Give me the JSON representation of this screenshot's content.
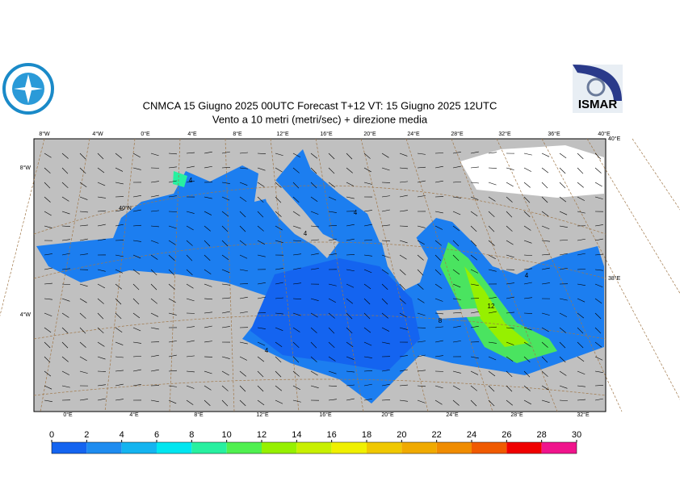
{
  "title": {
    "line1": "CNMCA 15   Giugno  2025 00UTC Forecast T+12 VT: 15   Giugno  2025 12UTC",
    "line2": "Vento a 10 metri (metri/sec) + direzione media"
  },
  "logo": {
    "right": "ISMAR"
  },
  "map": {
    "top_labels": [
      "8°W",
      "4°W",
      "0°E",
      "4°E",
      "8°E",
      "12°E",
      "16°E",
      "20°E",
      "24°E",
      "28°E",
      "32°E",
      "36°E",
      "40°E"
    ],
    "bottom_labels": [
      "0°E",
      "4°E",
      "8°E",
      "12°E",
      "16°E",
      "20°E",
      "24°E",
      "28°E",
      "32°E"
    ],
    "left_labels": [
      "8°W",
      "4°W"
    ],
    "right_labels": [
      "40°E",
      "38°E"
    ],
    "inner_labels": [
      "40°N"
    ],
    "contour_labels": [
      "4",
      "4",
      "4",
      "4",
      "12",
      "8",
      "4"
    ]
  },
  "colorbar": {
    "ticks": [
      0,
      2,
      4,
      6,
      8,
      10,
      12,
      14,
      16,
      18,
      20,
      22,
      24,
      26,
      28,
      30
    ],
    "colors": [
      "#1464f0",
      "#1e8cf0",
      "#14b4f0",
      "#00e6f0",
      "#28f0a0",
      "#50f050",
      "#96f000",
      "#c8f000",
      "#f0f000",
      "#f0c800",
      "#f0aa00",
      "#f08c00",
      "#f05a00",
      "#f00000",
      "#f0148c"
    ]
  }
}
